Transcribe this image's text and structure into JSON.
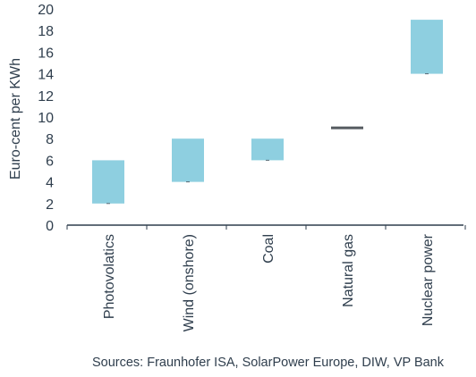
{
  "chart_data": {
    "type": "bar",
    "subtype": "floating-range",
    "categories": [
      "Photovolatics",
      "Wind (onshore)",
      "Coal",
      "Natural gas",
      "Nuclear power"
    ],
    "ranges": [
      {
        "low": 2,
        "high": 6
      },
      {
        "low": 4,
        "high": 8
      },
      {
        "low": 6,
        "high": 8
      },
      {
        "low": 9,
        "high": 9
      },
      {
        "low": 14,
        "high": 19
      }
    ],
    "ylabel": "Euro-cent per  KWh",
    "ylim": [
      0,
      20
    ],
    "yticks": [
      0,
      2,
      4,
      6,
      8,
      10,
      12,
      14,
      16,
      18,
      20
    ],
    "grid": false,
    "legend": "none",
    "bar_color": "#8ecfe0",
    "point_line_color": "#555b60",
    "axis_color": "#2f3e4d"
  },
  "source_note": "Sources: Fraunhofer ISA, SolarPower Europe, DIW, VP Bank"
}
